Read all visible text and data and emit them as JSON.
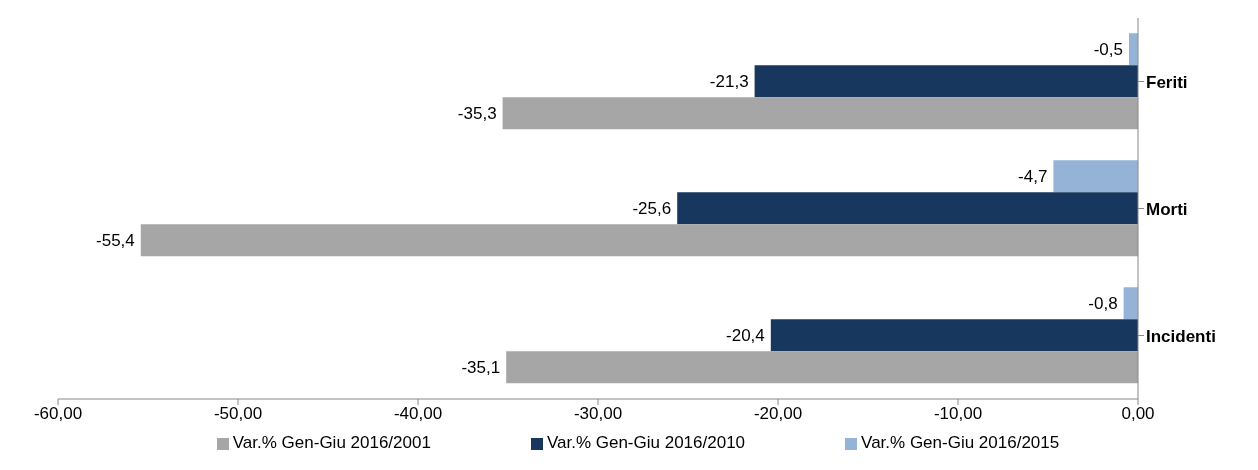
{
  "chart_data": {
    "type": "bar",
    "orientation": "horizontal",
    "categories": [
      "Feriti",
      "Morti",
      "Incidenti"
    ],
    "series": [
      {
        "name": "Var.% Gen-Giu 2016/2015",
        "color": "#95b3d7",
        "values": [
          -0.5,
          -4.7,
          -0.8
        ],
        "value_labels": [
          "-0,5",
          "-4,7",
          "-0,8"
        ]
      },
      {
        "name": "Var.% Gen-Giu 2016/2010",
        "color": "#17375e",
        "values": [
          -21.3,
          -25.6,
          -20.4
        ],
        "value_labels": [
          "-21,3",
          "-25,6",
          "-20,4"
        ]
      },
      {
        "name": "Var.% Gen-Giu 2016/2001",
        "color": "#a6a6a6",
        "values": [
          -35.3,
          -55.4,
          -35.1
        ],
        "value_labels": [
          "-35,3",
          "-55,4",
          "-35,1"
        ]
      }
    ],
    "xlim": [
      -60,
      0
    ],
    "xticks": [
      {
        "value": -60,
        "label": "-60,00"
      },
      {
        "value": -50,
        "label": "-50,00"
      },
      {
        "value": -40,
        "label": "-40,00"
      },
      {
        "value": -30,
        "label": "-30,00"
      },
      {
        "value": -20,
        "label": "-20,00"
      },
      {
        "value": -10,
        "label": "-10,00"
      },
      {
        "value": 0,
        "label": "0,00"
      }
    ],
    "grid": false,
    "legend": "bottom"
  }
}
